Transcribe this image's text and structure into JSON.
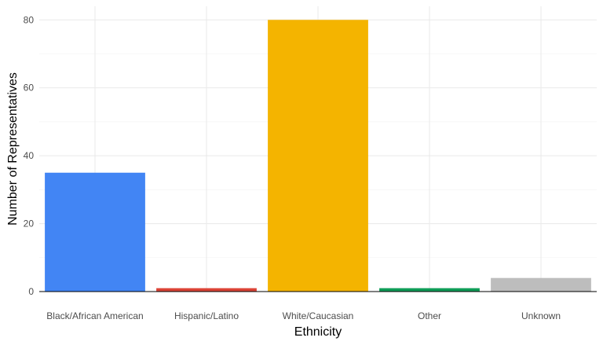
{
  "chart_data": {
    "type": "bar",
    "categories": [
      "Black/African American",
      "Hispanic/Latino",
      "White/Caucasian",
      "Other",
      "Unknown"
    ],
    "values": [
      35,
      1,
      80,
      1,
      4
    ],
    "colors": [
      "#4285F4",
      "#DB4437",
      "#F4B400",
      "#0F9D58",
      "#BDBDBD"
    ],
    "xlabel": "Ethnicity",
    "ylabel": "Number of Representatives",
    "ylim": [
      0,
      84
    ],
    "yticks": [
      0,
      20,
      40,
      60,
      80
    ],
    "grid": true,
    "legend": "none"
  }
}
